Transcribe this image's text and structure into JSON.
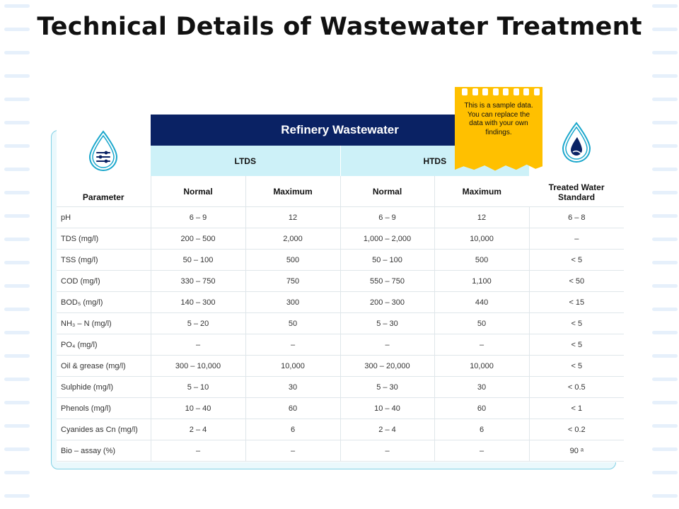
{
  "title": "Technical Details of Wastewater Treatment",
  "note": "This is a sample data. You can replace the data with your own findings.",
  "header": {
    "group": "Refinery Wastewater",
    "ltds": "LTDS",
    "htds": "HTDS",
    "parameter": "Parameter",
    "normal": "Normal",
    "maximum": "Maximum",
    "treated": "Treated Water Standard"
  },
  "rows": [
    {
      "param": "pH",
      "ltds_normal": "6 – 9",
      "ltds_max": "12",
      "htds_normal": "6 – 9",
      "htds_max": "12",
      "std": "6 – 8"
    },
    {
      "param": "TDS (mg/l)",
      "ltds_normal": "200 – 500",
      "ltds_max": "2,000",
      "htds_normal": "1,000 – 2,000",
      "htds_max": "10,000",
      "std": "–"
    },
    {
      "param": "TSS (mg/l)",
      "ltds_normal": "50 – 100",
      "ltds_max": "500",
      "htds_normal": "50 – 100",
      "htds_max": "500",
      "std": "< 5"
    },
    {
      "param": "COD (mg/l)",
      "ltds_normal": "330 – 750",
      "ltds_max": "750",
      "htds_normal": "550 – 750",
      "htds_max": "1,100",
      "std": "< 50"
    },
    {
      "param": "BOD₅ (mg/l)",
      "ltds_normal": "140 – 300",
      "ltds_max": "300",
      "htds_normal": "200 – 300",
      "htds_max": "440",
      "std": "< 15"
    },
    {
      "param": "NH₃ – N (mg/l)",
      "ltds_normal": "5 – 20",
      "ltds_max": "50",
      "htds_normal": "5 – 30",
      "htds_max": "50",
      "std": "< 5"
    },
    {
      "param": "PO₄ (mg/l)",
      "ltds_normal": "–",
      "ltds_max": "–",
      "htds_normal": "–",
      "htds_max": "–",
      "std": "< 5"
    },
    {
      "param": "Oil & grease (mg/l)",
      "ltds_normal": "300 – 10,000",
      "ltds_max": "10,000",
      "htds_normal": "300 – 20,000",
      "htds_max": "10,000",
      "std": "< 5"
    },
    {
      "param": "Sulphide (mg/l)",
      "ltds_normal": "5 – 10",
      "ltds_max": "30",
      "htds_normal": "5 – 30",
      "htds_max": "30",
      "std": "< 0.5"
    },
    {
      "param": "Phenols (mg/l)",
      "ltds_normal": "10 – 40",
      "ltds_max": "60",
      "htds_normal": "10 – 40",
      "htds_max": "60",
      "std": "< 1"
    },
    {
      "param": "Cyanides as Cn (mg/l)",
      "ltds_normal": "2 – 4",
      "ltds_max": "6",
      "htds_normal": "2 – 4",
      "htds_max": "6",
      "std": "< 0.2"
    },
    {
      "param": "Bio – assay (%)",
      "ltds_normal": "–",
      "ltds_max": "–",
      "htds_normal": "–",
      "htds_max": "–",
      "std": "90 ᵃ"
    }
  ],
  "icons": {
    "left": "water-drop-settings-icon",
    "right": "water-drop-icon"
  },
  "colors": {
    "header_dark": "#0a2264",
    "header_light": "#cdf1f8",
    "accent": "#1aa7cc",
    "note": "#ffc000"
  }
}
